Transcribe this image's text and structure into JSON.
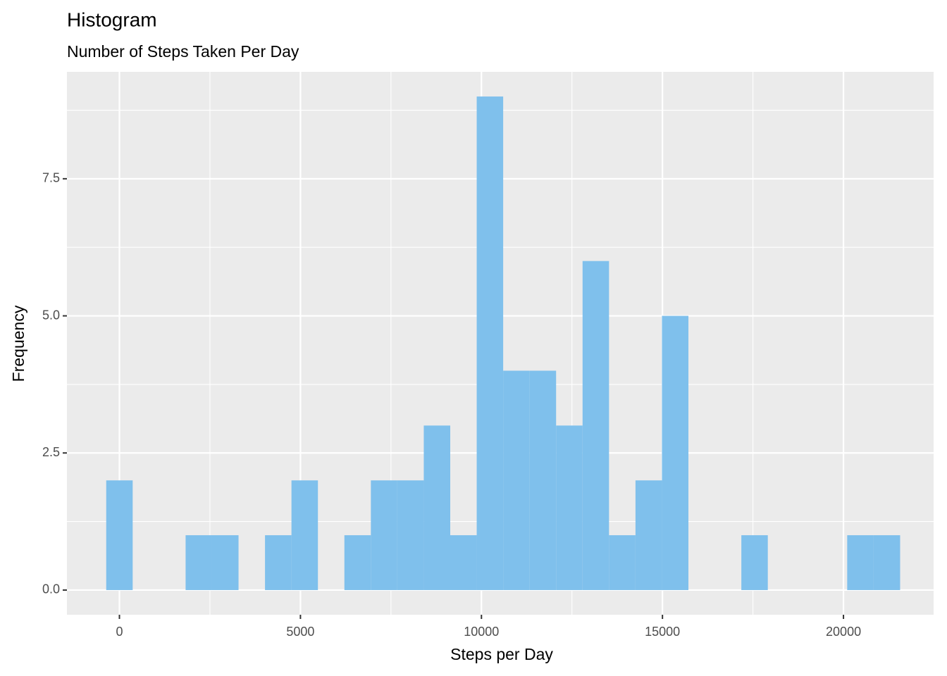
{
  "chart_data": {
    "type": "histogram",
    "title": "Histogram",
    "subtitle": "Number of Steps Taken Per Day",
    "x_label": "Steps per Day",
    "y_label": "Frequency",
    "bins": [
      -365,
      366,
      1097,
      1828,
      2559,
      3290,
      4021,
      4752,
      5483,
      6214,
      6945,
      7676,
      8407,
      9138,
      9869,
      10600,
      11331,
      12062,
      12793,
      13524,
      14255,
      14986,
      15717,
      16448,
      17179,
      17910,
      18641,
      19372,
      20103,
      20834,
      21565
    ],
    "values": [
      2,
      0,
      0,
      1,
      1,
      0,
      1,
      2,
      0,
      1,
      2,
      2,
      3,
      1,
      9,
      4,
      4,
      3,
      6,
      1,
      2,
      5,
      0,
      0,
      1,
      0,
      0,
      0,
      1,
      1
    ],
    "color": "#7fc0ec",
    "xlim": [
      -1450,
      22490
    ],
    "ylim": [
      -0.45,
      9.45
    ],
    "xticks": [
      0,
      5000,
      10000,
      15000,
      20000
    ],
    "yticks": [
      {
        "value": 0,
        "label": "0.0"
      },
      2.5,
      {
        "value": 5,
        "label": "5.0"
      },
      7.5
    ],
    "x_minor_breaks": [
      2500,
      7500,
      12500,
      17500,
      22500
    ],
    "y_minor_breaks": [
      1.25,
      3.75,
      6.25,
      8.75
    ],
    "grid": true
  }
}
